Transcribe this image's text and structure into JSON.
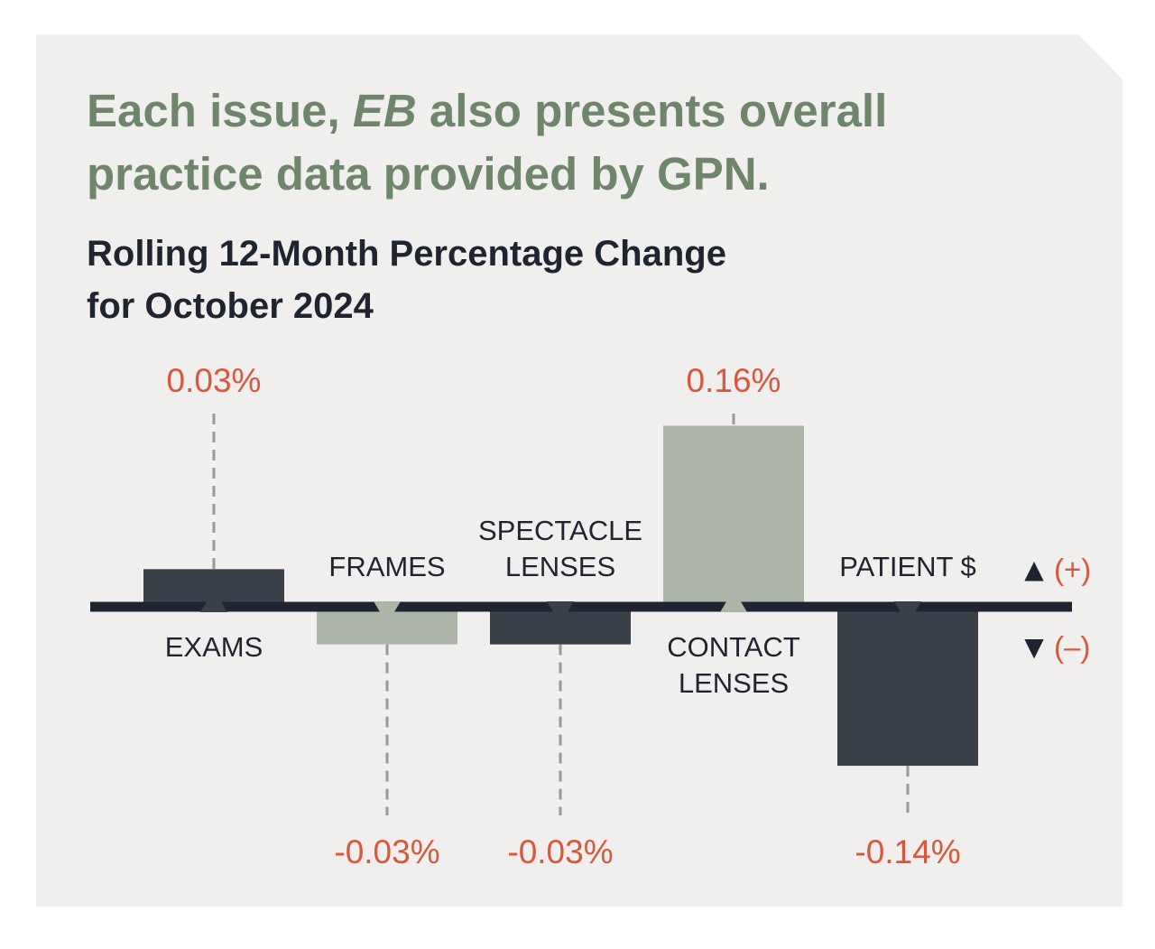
{
  "headline": {
    "part1": "Each issue, ",
    "emphasis": "EB",
    "part2": " also presents overall practice data provided by GPN."
  },
  "subtitle": {
    "line1": "Rolling 12-Month Percentage Change",
    "line2": "for October 2024"
  },
  "colors": {
    "dark_bar": "#3a4048",
    "light_bar": "#adb5a9",
    "value_text": "#d9573c",
    "headline": "#6e8669"
  },
  "chart_data": {
    "type": "bar",
    "title": "Rolling 12-Month Percentage Change for October 2024",
    "categories": [
      "EXAMS",
      "FRAMES",
      "SPECTACLE LENSES",
      "CONTACT LENSES",
      "PATIENT $"
    ],
    "category_lines": [
      [
        "EXAMS"
      ],
      [
        "FRAMES"
      ],
      [
        "SPECTACLE",
        "LENSES"
      ],
      [
        "CONTACT",
        "LENSES"
      ],
      [
        "PATIENT $"
      ]
    ],
    "values": [
      0.03,
      -0.03,
      -0.03,
      0.16,
      -0.14
    ],
    "value_labels": [
      "0.03%",
      "-0.03%",
      "-0.03%",
      "0.16%",
      "-0.14%"
    ],
    "bar_styles": [
      "dark",
      "light",
      "dark",
      "light",
      "dark"
    ],
    "unit": "%",
    "legend": [
      {
        "symbol": "▲",
        "label": "(+)"
      },
      {
        "symbol": "▼",
        "label": "(–)"
      }
    ],
    "legend_position": "right",
    "xlabel": "",
    "ylabel": ""
  }
}
